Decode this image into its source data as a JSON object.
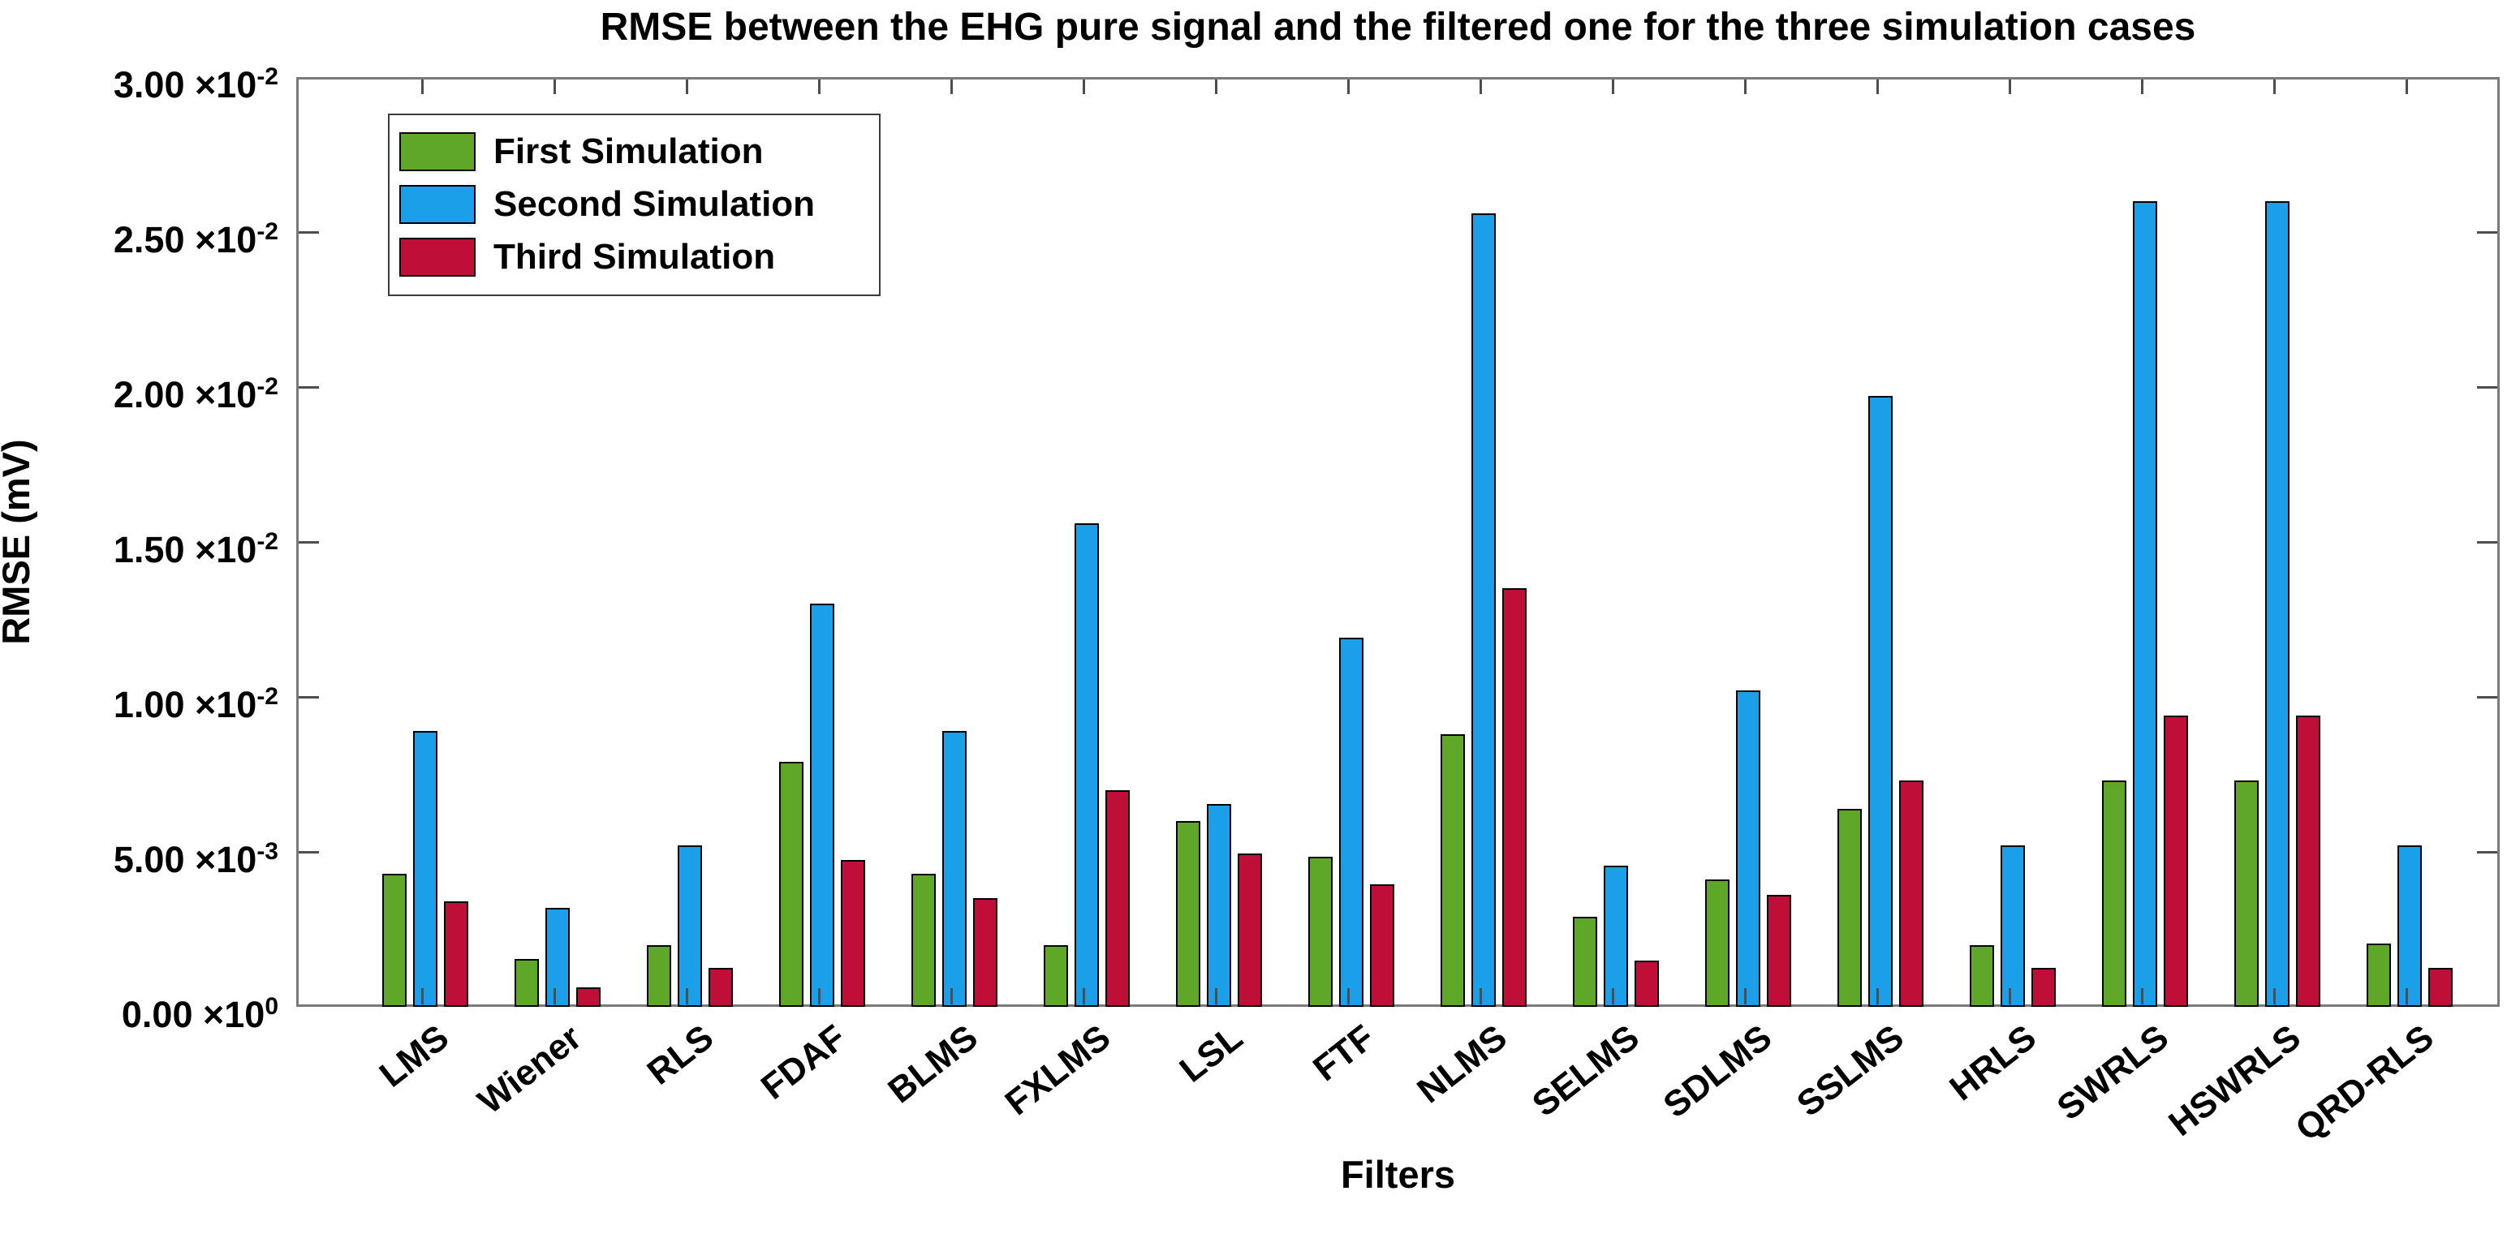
{
  "chart_data": {
    "type": "bar",
    "title": "RMSE between the EHG pure signal and the filtered one for the three simulation cases",
    "xlabel": "Filters",
    "ylabel": "RMSE (mV)",
    "categories": [
      "LMS",
      "Wiener",
      "RLS",
      "FDAF",
      "BLMS",
      "FXLMS",
      "LSL",
      "FTF",
      "NLMS",
      "SELMS",
      "SDLMS",
      "SSLMS",
      "HRLS",
      "SWRLS",
      "HSWRLS",
      "QRD-RLS"
    ],
    "series": [
      {
        "name": "First Simulation",
        "color": "#5FA728",
        "values": [
          0.0043,
          0.00155,
          0.002,
          0.0079,
          0.0043,
          0.002,
          0.006,
          0.00485,
          0.0088,
          0.0029,
          0.0041,
          0.0064,
          0.002,
          0.0073,
          0.0073,
          0.00205
        ]
      },
      {
        "name": "Second Simulation",
        "color": "#1B9FE9",
        "values": [
          0.0089,
          0.0032,
          0.0052,
          0.013,
          0.0089,
          0.0156,
          0.00655,
          0.0119,
          0.0256,
          0.00455,
          0.0102,
          0.0197,
          0.0052,
          0.026,
          0.026,
          0.0052
        ]
      },
      {
        "name": "Third Simulation",
        "color": "#BF0F38",
        "values": [
          0.0034,
          0.00063,
          0.00125,
          0.00475,
          0.0035,
          0.007,
          0.00495,
          0.00395,
          0.0135,
          0.0015,
          0.0036,
          0.0073,
          0.00125,
          0.0094,
          0.0094,
          0.00125
        ]
      }
    ],
    "ylim": [
      0,
      0.03
    ],
    "ytick_step": 0.005,
    "yticks_bottom_to_top": [
      {
        "m": "0.00",
        "e": "0"
      },
      {
        "m": "5.00",
        "e": "-3"
      },
      {
        "m": "1.00",
        "e": "-2"
      },
      {
        "m": "1.50",
        "e": "-2"
      },
      {
        "m": "2.00",
        "e": "-2"
      },
      {
        "m": "2.50",
        "e": "-2"
      },
      {
        "m": "3.00",
        "e": "-2"
      }
    ],
    "times_symbol": "×10",
    "legend_position": "top-left",
    "grid": false
  },
  "colors": {
    "background": "#ffffff",
    "axis_frame": "#7a7a7a",
    "tick": "#4d4d4d",
    "bar_edge": "#000000",
    "text": "#000000",
    "first_simulation": "#5FA728",
    "second_simulation": "#1B9FE9",
    "third_simulation": "#BF0F38"
  }
}
